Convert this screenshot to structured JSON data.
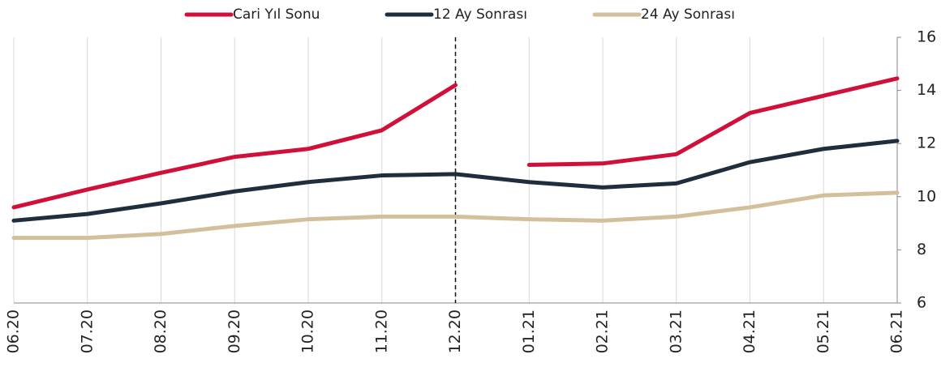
{
  "chart_data": {
    "type": "line",
    "categories": [
      "06.20",
      "07.20",
      "08.20",
      "09.20",
      "10.20",
      "11.20",
      "12.20",
      "01.21",
      "02.21",
      "03.21",
      "04.21",
      "05.21",
      "06.21"
    ],
    "series": [
      {
        "name": "Cari Yıl Sonu",
        "color": "#d0103a",
        "break_at_vline": true,
        "values": [
          9.6,
          10.27,
          10.9,
          11.5,
          11.8,
          12.5,
          14.2,
          11.2,
          11.25,
          11.6,
          13.15,
          13.8,
          14.45
        ]
      },
      {
        "name": "12 Ay Sonrası",
        "color": "#1f2d3d",
        "values": [
          9.1,
          9.35,
          9.75,
          10.2,
          10.55,
          10.8,
          10.85,
          10.55,
          10.35,
          10.5,
          11.3,
          11.8,
          12.1
        ]
      },
      {
        "name": "24 Ay Sonrası",
        "color": "#d4bf9c",
        "values": [
          8.45,
          8.45,
          8.6,
          8.9,
          9.15,
          9.25,
          9.25,
          9.15,
          9.1,
          9.25,
          9.6,
          10.05,
          10.15
        ]
      }
    ],
    "ylim": [
      6,
      16
    ],
    "yticks": [
      6,
      8,
      10,
      12,
      14,
      16
    ],
    "y_axis_side": "right",
    "grid": "vertical",
    "vline": "12.20",
    "legend": "top"
  }
}
